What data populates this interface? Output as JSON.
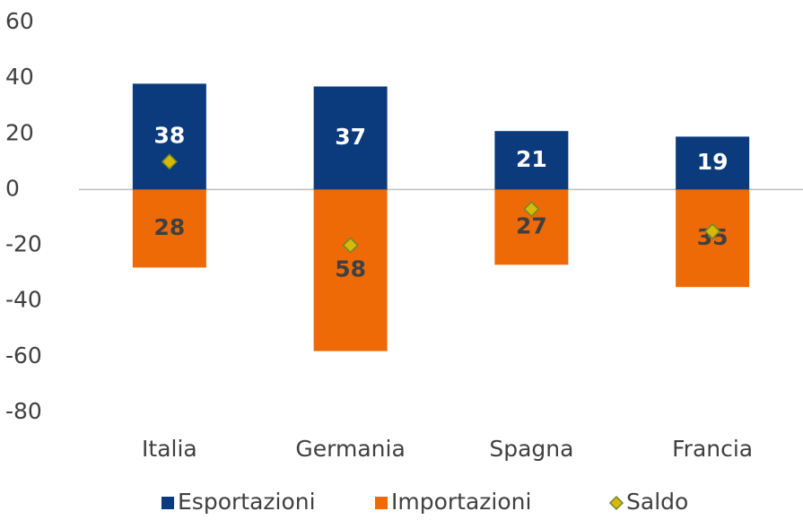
{
  "chart_data": {
    "type": "bar",
    "categories": [
      "Italia",
      "Germania",
      "Spagna",
      "Francia"
    ],
    "series": [
      {
        "name": "Esportazioni",
        "type": "bar",
        "color": "#0b3b7c",
        "label_color": "#ffffff",
        "values": [
          38,
          37,
          21,
          19
        ]
      },
      {
        "name": "Importazioni",
        "type": "bar",
        "color": "#ee6a07",
        "label_color": "#404040",
        "values": [
          -28,
          -58,
          -27,
          -35
        ],
        "value_labels": [
          "28",
          "58",
          "27",
          "35"
        ]
      },
      {
        "name": "Saldo",
        "type": "scatter",
        "color": "#d9b80a",
        "values": [
          10,
          -20,
          -7,
          -15
        ]
      }
    ],
    "ylim": [
      -80,
      60
    ],
    "yticks": [
      -80,
      -60,
      -40,
      -20,
      0,
      20,
      40,
      60
    ],
    "legend": "bottom"
  }
}
